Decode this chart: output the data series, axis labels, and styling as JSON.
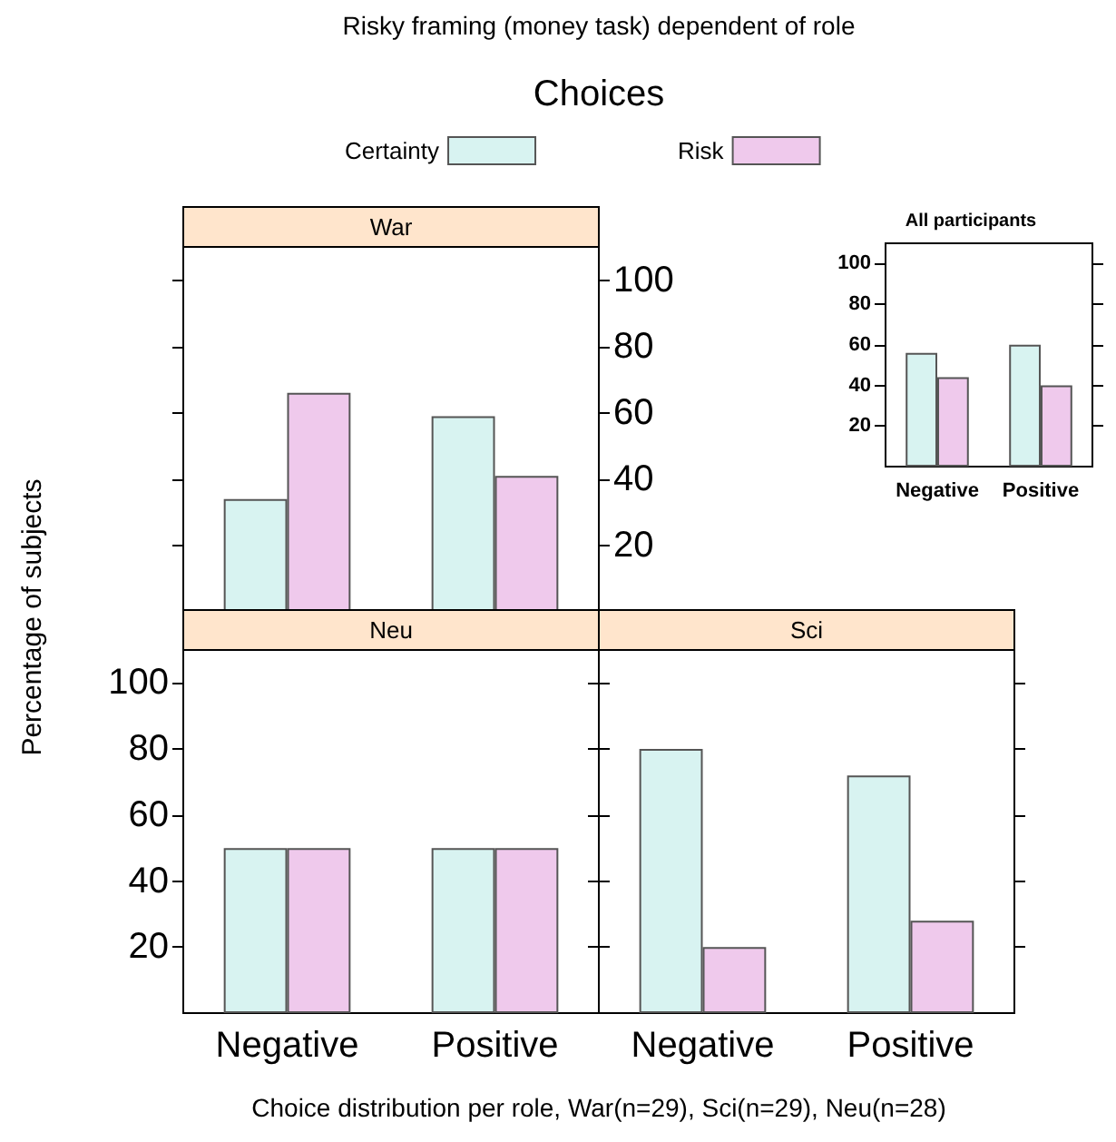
{
  "chart_data": [
    {
      "type": "bar",
      "title": "War",
      "annotations": [
        "Risky framing (money task) dependent of role"
      ],
      "legend": "top",
      "legend_title": "Choices",
      "categories": [
        null,
        null
      ],
      "series": [
        {
          "name": "Certainty",
          "color": "#d8f3f1",
          "values": [
            34,
            59
          ]
        },
        {
          "name": "Risk",
          "color": "#efc9ec",
          "values": [
            66,
            41
          ]
        }
      ],
      "ylim": [
        0,
        110
      ],
      "yticks": [
        20,
        40,
        60,
        80,
        100
      ]
    },
    {
      "type": "bar",
      "title": "Neu",
      "ylabel": "Percentage of subjects",
      "xlabel": "Choice distribution per role, War(n=29), Sci(n=29), Neu(n=28)",
      "categories": [
        "Negative",
        "Positive"
      ],
      "series": [
        {
          "color": "#d8f3f1",
          "values": [
            50,
            50
          ]
        },
        {
          "color": "#efc9ec",
          "values": [
            50,
            50
          ]
        }
      ],
      "ylim": [
        0,
        110
      ],
      "yticks": [
        20,
        40,
        60,
        80,
        100
      ]
    },
    {
      "type": "bar",
      "title": "Sci",
      "categories": [
        "Negative",
        "Positive"
      ],
      "series": [
        {
          "color": "#d8f3f1",
          "values": [
            80,
            72
          ]
        },
        {
          "color": "#efc9ec",
          "values": [
            20,
            28
          ]
        }
      ],
      "ylim": [
        0,
        110
      ],
      "yticks": [
        20,
        40,
        60,
        80,
        100
      ],
      "tick_labels": "x"
    },
    {
      "type": "bar",
      "title": "All participants",
      "categories": [
        "Negative",
        "Positive"
      ],
      "series": [
        {
          "color": "#d8f3f1",
          "values": [
            56,
            60
          ]
        },
        {
          "color": "#efc9ec",
          "values": [
            44,
            40
          ]
        }
      ],
      "ylim": [
        0,
        110
      ],
      "yticks": [
        20,
        40,
        60,
        80,
        100
      ]
    }
  ]
}
